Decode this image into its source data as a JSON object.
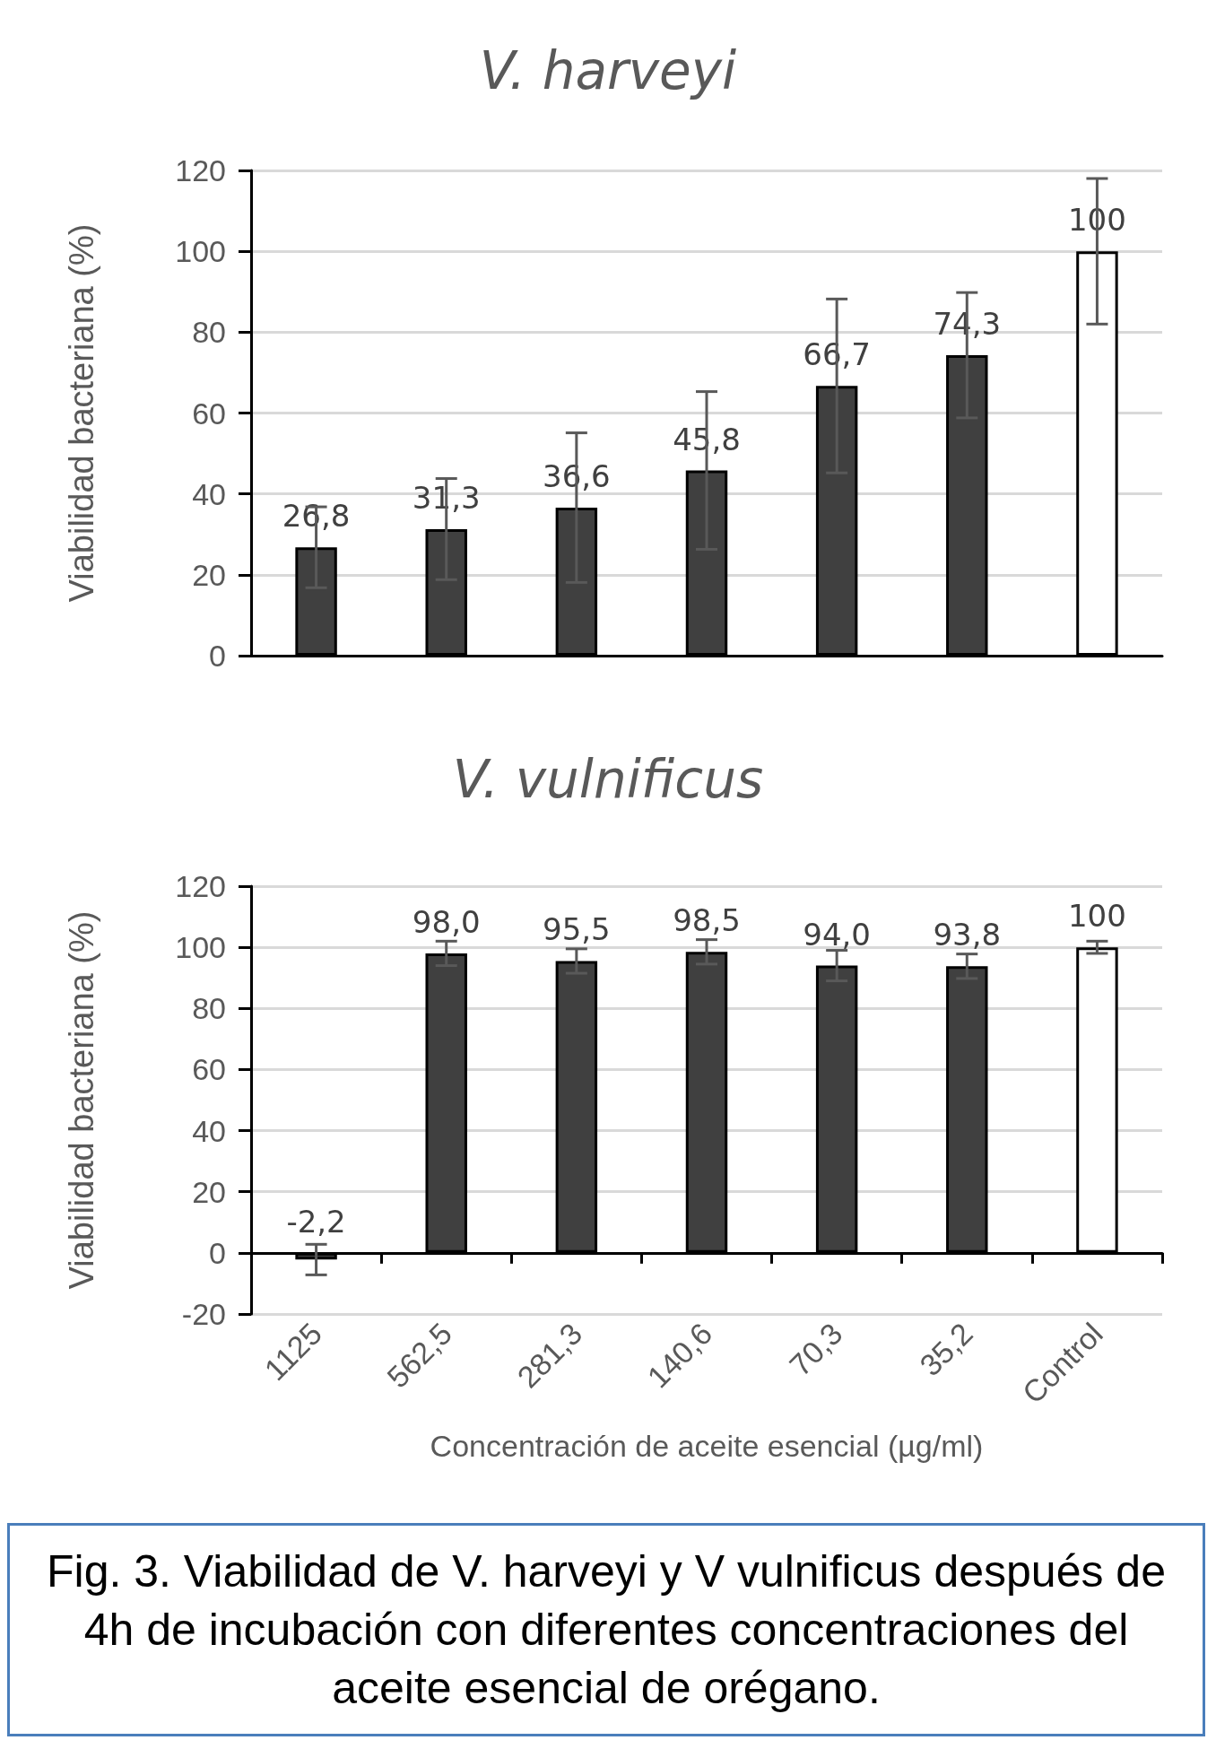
{
  "chart_data": [
    {
      "type": "bar",
      "title": "V. harveyi",
      "ylabel": "Viabilidad bacteriana (%)",
      "categories": [
        null,
        null,
        null,
        null,
        null,
        null,
        null
      ],
      "values": [
        26.8,
        31.3,
        36.6,
        45.8,
        66.7,
        74.3,
        100
      ],
      "colors": [
        "#404040",
        "#404040",
        "#404040",
        "#404040",
        "#404040",
        "#404040",
        "#ffffff"
      ],
      "errors": [
        10,
        12.5,
        18.5,
        19.5,
        21.5,
        15.5,
        18
      ],
      "value_labels": [
        "26,8",
        "31,3",
        "36,6",
        "45,8",
        "66,7",
        "74,3",
        "100"
      ],
      "ylim": [
        0,
        120
      ],
      "yticks": [
        0,
        20,
        40,
        60,
        80,
        100,
        120
      ],
      "grid": "y",
      "tick_labels": "y"
    },
    {
      "type": "bar",
      "title": "V. vulnificus",
      "xlabel": "Concentración de aceite esencial (µg/ml)",
      "ylabel": "Viabilidad bacteriana (%)",
      "categories": [
        "1125",
        "562,5",
        "281,3",
        "140,6",
        "70,3",
        "35,2",
        "Control"
      ],
      "values": [
        -2.2,
        98.0,
        95.5,
        98.5,
        94.0,
        93.8,
        100
      ],
      "colors": [
        "#404040",
        "#404040",
        "#404040",
        "#404040",
        "#404040",
        "#404040",
        "#ffffff"
      ],
      "errors": [
        5,
        4,
        4,
        4,
        5,
        4,
        2
      ],
      "value_labels": [
        "-2,2",
        "98,0",
        "95,5",
        "98,5",
        "94,0",
        "93,8",
        "100"
      ],
      "ylim": [
        -20,
        120
      ],
      "yticks": [
        -20,
        0,
        20,
        40,
        60,
        80,
        100,
        120
      ],
      "grid": "y",
      "annotations": [
        "Fig. 3. Viabilidad de V. harveyi y V vulnificus después de 4h de incubación con diferentes concentraciones del aceite esencial de orégano."
      ]
    }
  ]
}
